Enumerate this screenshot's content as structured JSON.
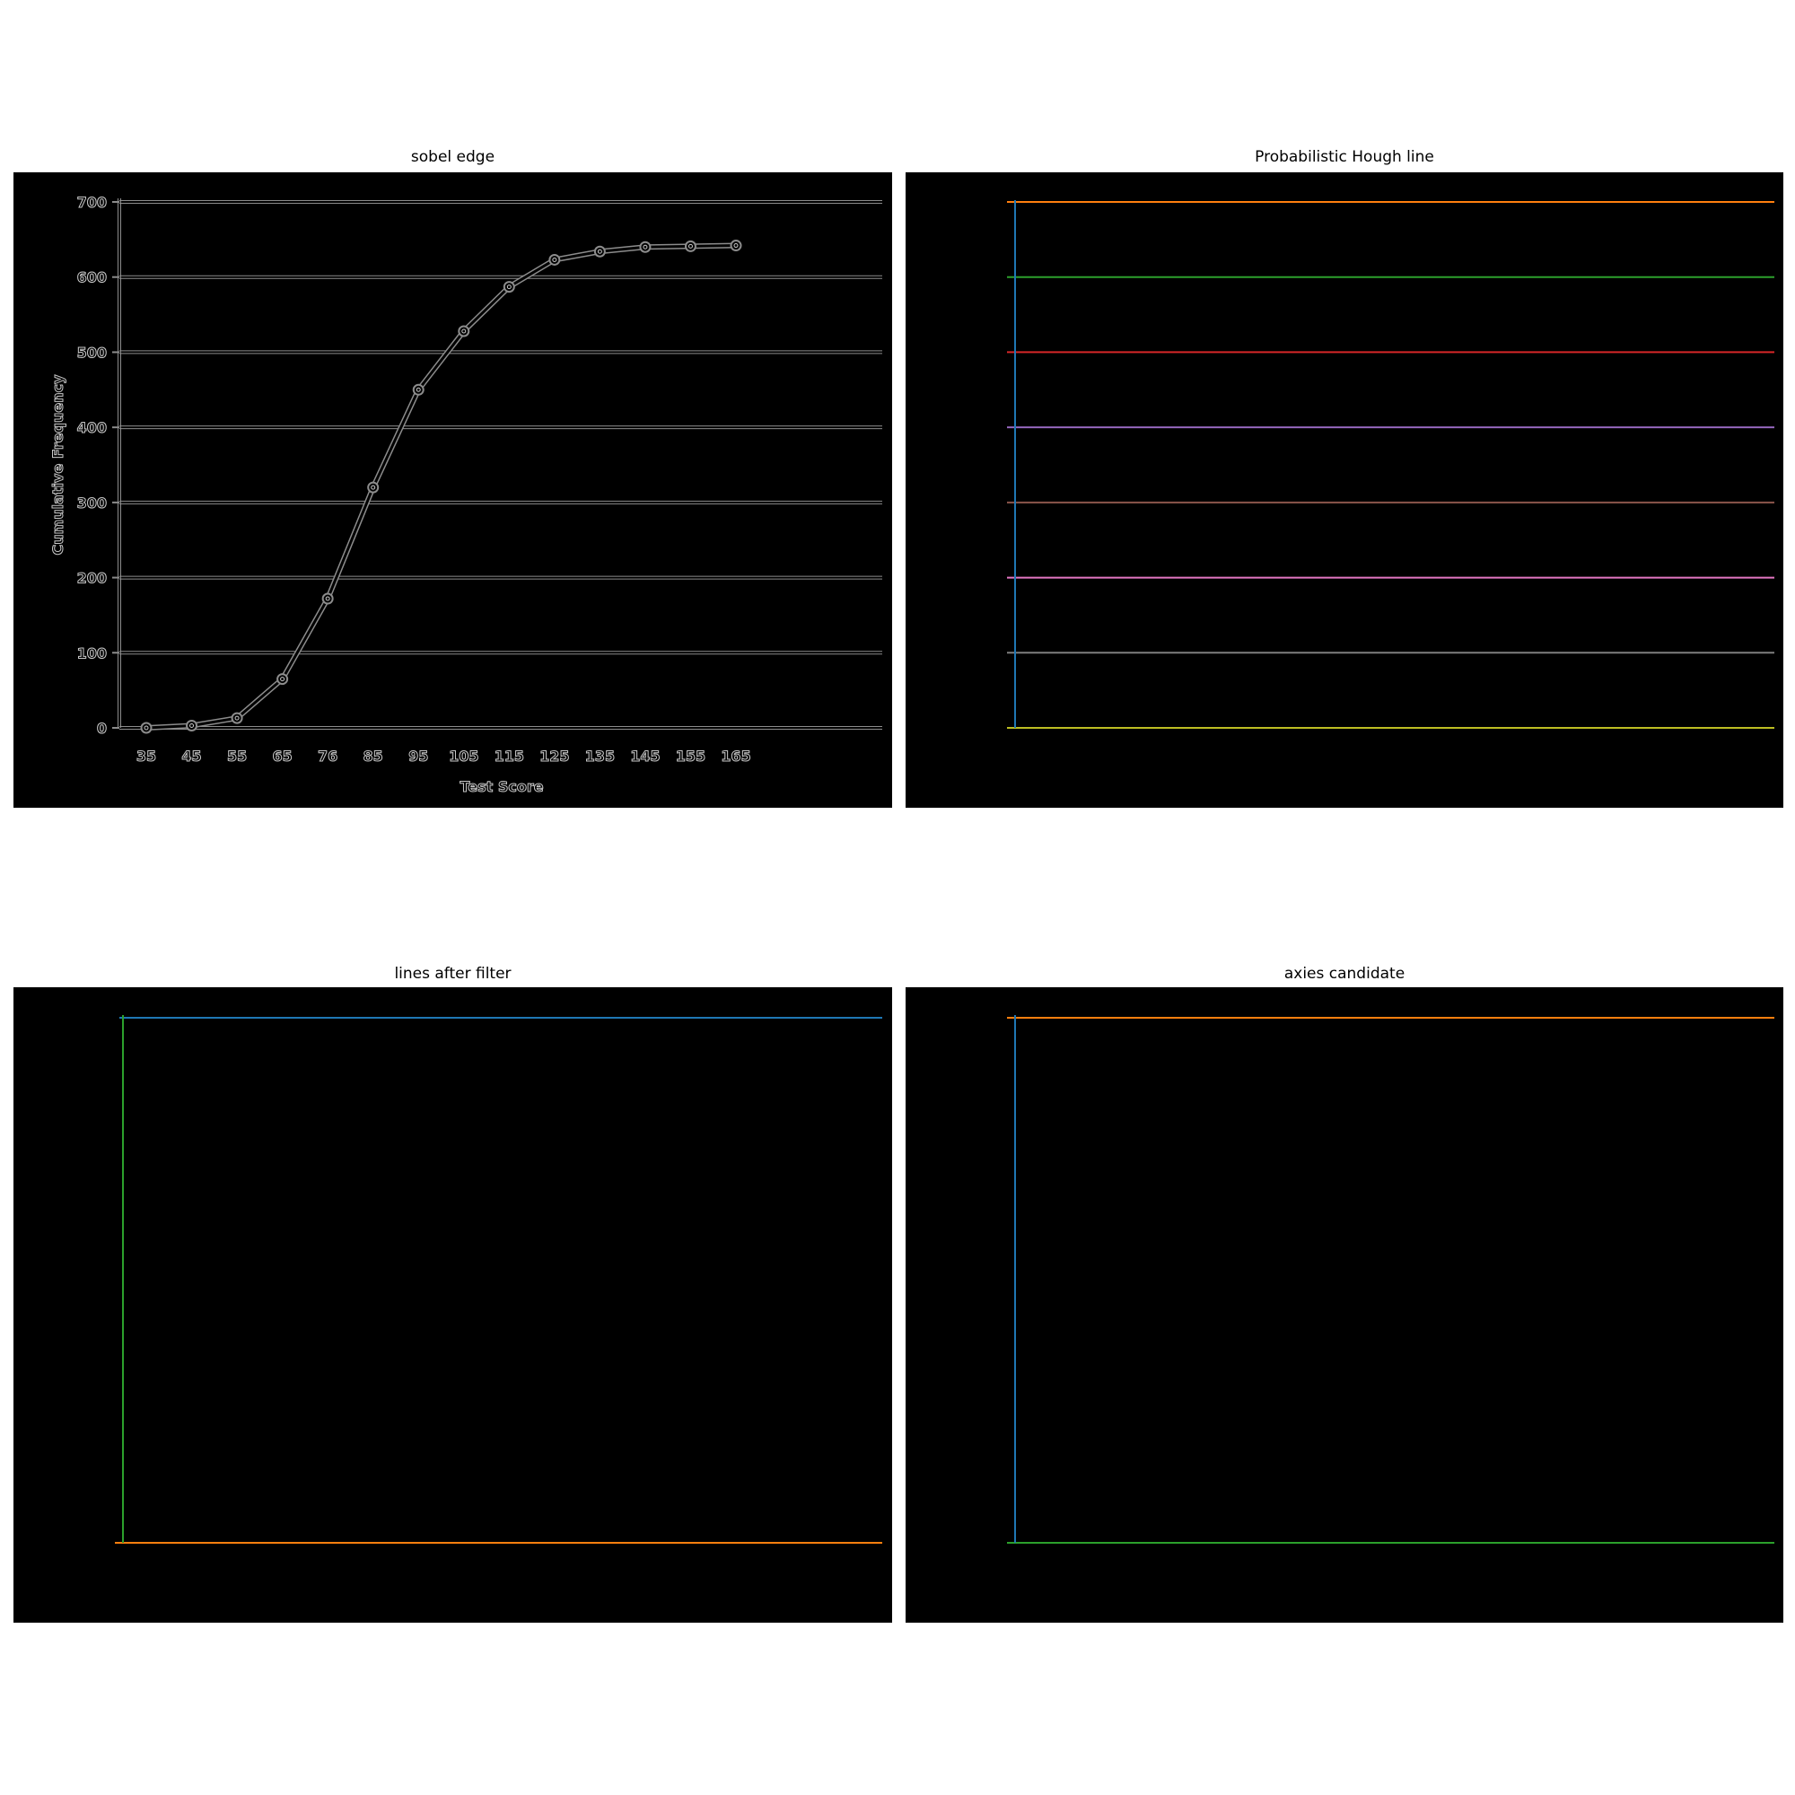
{
  "panels": [
    {
      "title": "sobel edge"
    },
    {
      "title": "Probabilistic Hough line"
    },
    {
      "title": "lines after filter"
    },
    {
      "title": "axies candidate"
    }
  ],
  "chart_data": {
    "type": "line",
    "title": "",
    "xlabel": "Test Score",
    "ylabel": "Cumulative Frequency",
    "categories": [
      "35",
      "45",
      "55",
      "65",
      "76",
      "85",
      "95",
      "105",
      "115",
      "125",
      "135",
      "145",
      "155",
      "165"
    ],
    "series": [
      {
        "values": [
          0,
          3,
          13,
          65,
          172,
          320,
          450,
          528,
          587,
          623,
          634,
          640,
          641,
          642
        ]
      }
    ],
    "yticks": [
      "0",
      "100",
      "200",
      "300",
      "400",
      "500",
      "600",
      "700"
    ],
    "ylim": [
      0,
      700
    ],
    "grid": true,
    "colors": {
      "edge": "#8c8c8c",
      "edge_light": "#c8c8c8"
    }
  },
  "hough_colors": [
    "#ff7f0e",
    "#2ca02c",
    "#d62728",
    "#9467bd",
    "#8c564b",
    "#e377c2",
    "#7f7f7f",
    "#bcbd22",
    "#1f77b4"
  ],
  "filter_colors": {
    "top": "#1f77b4",
    "bottom": "#ff7f0e",
    "vertical": "#2ca02c"
  },
  "axis_colors": {
    "top": "#ff7f0e",
    "bottom": "#2ca02c",
    "vertical": "#1f77b4"
  }
}
